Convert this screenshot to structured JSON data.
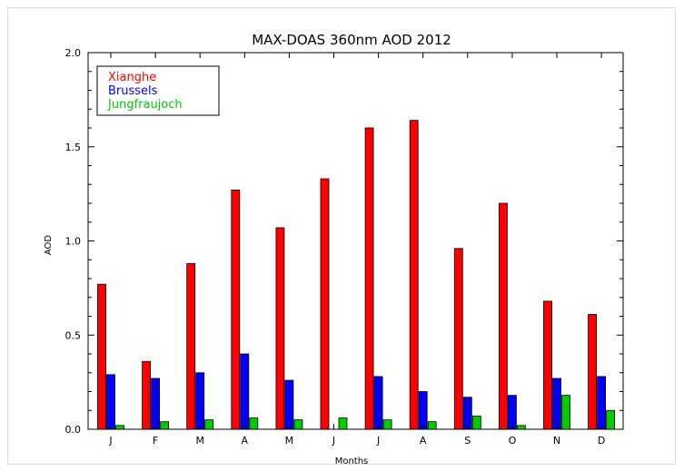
{
  "chart_data": {
    "type": "bar",
    "title": "MAX-DOAS 360nm AOD 2012",
    "xlabel": "Months",
    "ylabel": "AOD",
    "categories": [
      "J",
      "F",
      "M",
      "A",
      "M",
      "J",
      "J",
      "A",
      "S",
      "O",
      "N",
      "D"
    ],
    "ylim": [
      0,
      2.0
    ],
    "yticks": [
      "0.0",
      "0.5",
      "1.0",
      "1.5",
      "2.0"
    ],
    "ytick_values": [
      0,
      0.5,
      1.0,
      1.5,
      2.0
    ],
    "legend_position": "top-left",
    "series": [
      {
        "name": "Xianghe",
        "color": "#ff0000",
        "values": [
          0.77,
          0.36,
          0.88,
          1.27,
          1.07,
          1.33,
          1.6,
          1.64,
          0.96,
          1.2,
          0.68,
          0.61
        ]
      },
      {
        "name": "Brussels",
        "color": "#0000ff",
        "values": [
          0.29,
          0.27,
          0.3,
          0.4,
          0.26,
          null,
          0.28,
          0.2,
          0.17,
          0.18,
          0.27,
          0.28
        ]
      },
      {
        "name": "Jungfraujoch",
        "color": "#00cc00",
        "values": [
          0.02,
          0.04,
          0.05,
          0.06,
          0.05,
          0.06,
          0.05,
          0.04,
          0.07,
          0.02,
          0.18,
          0.1
        ]
      }
    ]
  }
}
